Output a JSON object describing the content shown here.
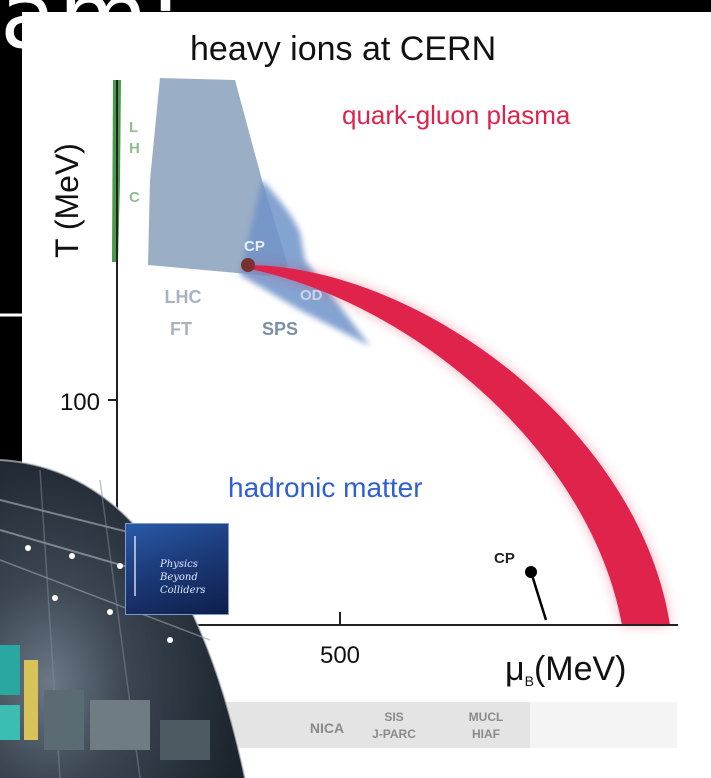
{
  "slide": {
    "title_fragment": "am:",
    "figure_title": "heavy ions at CERN"
  },
  "axes": {
    "y_label": "T (MeV)",
    "y_tick": "100",
    "x_label": "(MeV)",
    "x_symbol": "μ",
    "x_symbol_sub": "B",
    "x_tick": "500"
  },
  "regions": {
    "qgp": "quark-gluon plasma",
    "hadronic": "hadronic matter",
    "lhc_vertical": [
      "L",
      "H",
      "C"
    ],
    "lhc_ft": [
      "LHC",
      "FT"
    ],
    "sps": "SPS",
    "od": "OD",
    "cp_top": "CP",
    "cp_bottom": "CP"
  },
  "facilities": {
    "nica": "NICA",
    "sis": [
      "SIS",
      "J-PARC"
    ],
    "mucl": [
      "MUCL",
      "HIAF"
    ]
  },
  "logo": {
    "lines": [
      "Physics",
      "Beyond",
      "Colliders"
    ]
  },
  "colors": {
    "qgp_band": "#e0234a",
    "hadronic_text": "#2f5fd0",
    "lhc_band": "#4a9a4a",
    "lhc_ft_region": "#8fa6bf",
    "sps_region": "#6f93c9"
  }
}
